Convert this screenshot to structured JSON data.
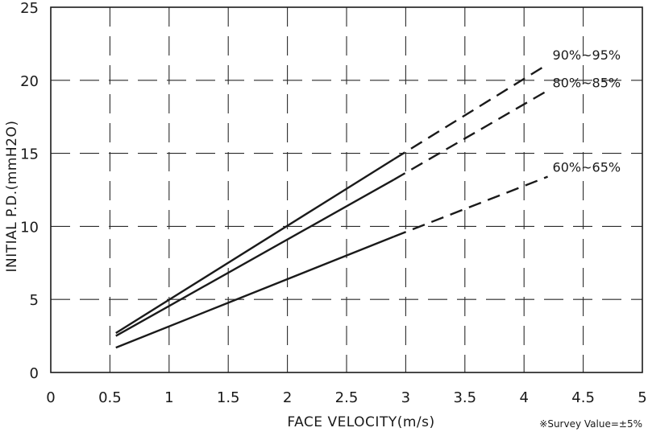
{
  "chart_data": {
    "type": "line",
    "xlabel": "FACE VELOCITY(m/s)",
    "ylabel": "INITIAL P.D.(mmH2O)",
    "xlim": [
      0,
      5
    ],
    "ylim": [
      0,
      25
    ],
    "x_ticks": [
      0,
      0.5,
      1,
      1.5,
      2,
      2.5,
      3,
      3.5,
      4,
      4.5,
      5
    ],
    "x_tick_labels": [
      "0",
      "0.5",
      "1",
      "1.5",
      "2",
      "2.5",
      "3",
      "3.5",
      "4",
      "4.5",
      "5"
    ],
    "y_ticks": [
      0,
      5,
      10,
      15,
      20,
      25
    ],
    "y_tick_labels": [
      "0",
      "5",
      "10",
      "15",
      "20",
      "25"
    ],
    "grid": true,
    "series": [
      {
        "name": "90%~95%",
        "x": [
          0.55,
          2.9,
          4.2
        ],
        "y": [
          2.7,
          14.6,
          21.1
        ],
        "solid_until_x": 2.9
      },
      {
        "name": "80%~85%",
        "x": [
          0.55,
          2.9,
          4.2
        ],
        "y": [
          2.5,
          13.2,
          19.3
        ],
        "solid_until_x": 2.9
      },
      {
        "name": "60%~65%",
        "x": [
          0.55,
          2.9,
          4.2
        ],
        "y": [
          1.7,
          9.3,
          13.4
        ],
        "solid_until_x": 2.9
      }
    ],
    "note": "※Survey Value=±5%"
  }
}
